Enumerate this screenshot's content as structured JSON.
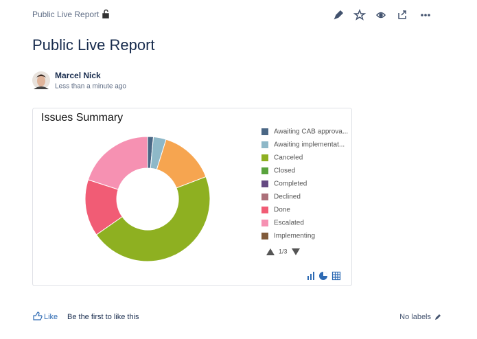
{
  "breadcrumb": "Public Live Report",
  "title": "Public Live Report",
  "author": {
    "name": "Marcel Nick",
    "time": "Less than a minute ago"
  },
  "chart_data": {
    "type": "donut",
    "title": "Issues Summary",
    "categories": [
      "Awaiting CAB approva...",
      "Awaiting implementat...",
      null,
      "Canceled",
      "Closed",
      "Completed",
      "Declined",
      "Done",
      "Escalated",
      "Implementing"
    ],
    "values": [
      1.5,
      3.3,
      14.4,
      46.1,
      0,
      0,
      0,
      14.7,
      20,
      0
    ],
    "colors": [
      "#4a6785",
      "#8eb8c8",
      "#f6a550",
      "#8eb021",
      "#59a33d",
      "#654982",
      "#ac707a",
      "#f15c75",
      "#f691b2",
      "#815b3a"
    ],
    "legend_page": "1/3"
  },
  "footer": {
    "like": "Like",
    "like_note": "Be the first to like this",
    "labels": "No labels"
  }
}
